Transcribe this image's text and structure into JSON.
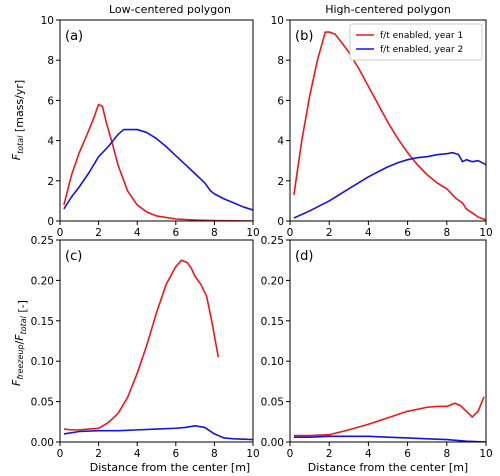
{
  "figure": {
    "xlabel": "Distance from the center [m]",
    "ylabel_top": "F_total [mass/yr]",
    "ylabel_bottom": "F_freezeup/F_total [-]"
  },
  "colors": {
    "year1": "#e8191b",
    "year2": "#1414e0",
    "frame": "#000000"
  },
  "chart_data": [
    {
      "id": "a",
      "panel_label": "(a)",
      "title": "Low-centered polygon",
      "type": "line",
      "xlim": [
        0,
        10
      ],
      "ylim": [
        0,
        10
      ],
      "xticks": [
        "0",
        "2",
        "4",
        "6",
        "8",
        "10"
      ],
      "yticks": [
        "0",
        "2",
        "4",
        "6",
        "8",
        "10"
      ],
      "series": [
        {
          "key": "year1",
          "x": [
            0.2,
            0.6,
            1.0,
            1.4,
            1.7,
            2.0,
            2.2,
            2.4,
            2.7,
            3.0,
            3.5,
            4.0,
            4.5,
            5.0,
            6.0,
            7.0,
            8.0,
            9.0,
            10.0
          ],
          "y": [
            0.8,
            2.3,
            3.4,
            4.3,
            5.0,
            5.8,
            5.7,
            4.9,
            3.9,
            2.8,
            1.5,
            0.8,
            0.45,
            0.25,
            0.1,
            0.05,
            0.02,
            0.01,
            0.0
          ]
        },
        {
          "key": "year2",
          "x": [
            0.2,
            0.6,
            1.0,
            1.5,
            2.0,
            2.5,
            3.0,
            3.3,
            3.5,
            4.0,
            4.5,
            5.0,
            5.5,
            6.0,
            6.5,
            7.0,
            7.5,
            7.8,
            8.0,
            8.5,
            9.0,
            9.5,
            10.0
          ],
          "y": [
            0.6,
            1.2,
            1.7,
            2.4,
            3.2,
            3.7,
            4.3,
            4.55,
            4.55,
            4.55,
            4.4,
            4.1,
            3.7,
            3.25,
            2.8,
            2.35,
            1.9,
            1.5,
            1.35,
            1.1,
            0.9,
            0.7,
            0.55
          ]
        }
      ]
    },
    {
      "id": "b",
      "panel_label": "(b)",
      "title": "High-centered polygon",
      "type": "line",
      "xlim": [
        0,
        10
      ],
      "ylim": [
        0,
        10
      ],
      "xticks": [
        "0",
        "2",
        "4",
        "6",
        "8",
        "10"
      ],
      "yticks": [
        "0",
        "2",
        "4",
        "6",
        "8",
        "10"
      ],
      "legend": {
        "position": "top-right",
        "entries": [
          {
            "key": "year1",
            "label": "f/t enabled, year 1"
          },
          {
            "key": "year2",
            "label": "f/t enabled, year 2"
          }
        ]
      },
      "series": [
        {
          "key": "year1",
          "x": [
            0.2,
            0.6,
            1.0,
            1.4,
            1.8,
            2.0,
            2.3,
            2.7,
            3.0,
            3.5,
            4.0,
            4.5,
            5.0,
            5.5,
            6.0,
            6.5,
            7.0,
            7.5,
            8.0,
            8.5,
            8.8,
            9.0,
            9.3,
            9.6,
            10.0
          ],
          "y": [
            1.3,
            4.0,
            6.2,
            8.0,
            9.4,
            9.4,
            9.3,
            8.8,
            8.4,
            7.6,
            6.7,
            5.8,
            4.9,
            4.1,
            3.4,
            2.8,
            2.3,
            1.9,
            1.6,
            1.1,
            0.9,
            0.6,
            0.4,
            0.2,
            0.05
          ]
        },
        {
          "key": "year2",
          "x": [
            0.2,
            1.0,
            2.0,
            3.0,
            4.0,
            5.0,
            5.5,
            6.0,
            6.5,
            7.0,
            7.5,
            8.0,
            8.3,
            8.6,
            8.8,
            9.0,
            9.3,
            9.6,
            10.0
          ],
          "y": [
            0.15,
            0.5,
            1.0,
            1.6,
            2.2,
            2.7,
            2.9,
            3.05,
            3.15,
            3.2,
            3.3,
            3.35,
            3.4,
            3.3,
            2.95,
            3.05,
            2.95,
            3.0,
            2.8
          ]
        }
      ]
    },
    {
      "id": "c",
      "panel_label": "(c)",
      "title": "",
      "type": "line",
      "xlim": [
        0,
        10
      ],
      "ylim": [
        0,
        0.25
      ],
      "xticks": [
        "0",
        "2",
        "4",
        "6",
        "8",
        "10"
      ],
      "yticks": [
        "0.00",
        "0.05",
        "0.10",
        "0.15",
        "0.20",
        "0.25"
      ],
      "series": [
        {
          "key": "year1",
          "x": [
            0.2,
            0.6,
            1.0,
            1.5,
            2.0,
            2.5,
            3.0,
            3.5,
            4.0,
            4.5,
            5.0,
            5.5,
            6.0,
            6.3,
            6.6,
            6.8,
            7.0,
            7.3,
            7.6,
            7.9,
            8.2
          ],
          "y": [
            0.016,
            0.015,
            0.015,
            0.016,
            0.017,
            0.024,
            0.035,
            0.055,
            0.085,
            0.12,
            0.16,
            0.195,
            0.217,
            0.225,
            0.222,
            0.215,
            0.205,
            0.195,
            0.18,
            0.145,
            0.105
          ]
        },
        {
          "key": "year2",
          "x": [
            0.2,
            1.0,
            2.0,
            3.0,
            4.0,
            5.0,
            6.0,
            6.5,
            7.0,
            7.5,
            8.0,
            8.5,
            9.0,
            10.0
          ],
          "y": [
            0.01,
            0.013,
            0.014,
            0.014,
            0.015,
            0.016,
            0.017,
            0.018,
            0.02,
            0.018,
            0.01,
            0.005,
            0.004,
            0.003
          ]
        }
      ]
    },
    {
      "id": "d",
      "panel_label": "(d)",
      "title": "",
      "type": "line",
      "xlim": [
        0,
        10
      ],
      "ylim": [
        0,
        0.25
      ],
      "xticks": [
        "0",
        "2",
        "4",
        "6",
        "8",
        "10"
      ],
      "yticks": [
        "0.00",
        "0.05",
        "0.10",
        "0.15",
        "0.20",
        "0.25"
      ],
      "series": [
        {
          "key": "year1",
          "x": [
            0.2,
            1.0,
            2.0,
            3.0,
            4.0,
            5.0,
            6.0,
            7.0,
            7.5,
            8.0,
            8.4,
            8.7,
            9.0,
            9.3,
            9.6,
            9.9
          ],
          "y": [
            0.008,
            0.008,
            0.009,
            0.015,
            0.022,
            0.03,
            0.038,
            0.043,
            0.044,
            0.044,
            0.048,
            0.045,
            0.038,
            0.031,
            0.038,
            0.056
          ]
        },
        {
          "key": "year2",
          "x": [
            0.2,
            1.0,
            2.0,
            3.0,
            4.0,
            5.0,
            6.0,
            7.0,
            8.0,
            9.0,
            10.0
          ],
          "y": [
            0.006,
            0.006,
            0.007,
            0.007,
            0.007,
            0.006,
            0.005,
            0.004,
            0.003,
            0.001,
            0.0
          ]
        }
      ]
    }
  ]
}
